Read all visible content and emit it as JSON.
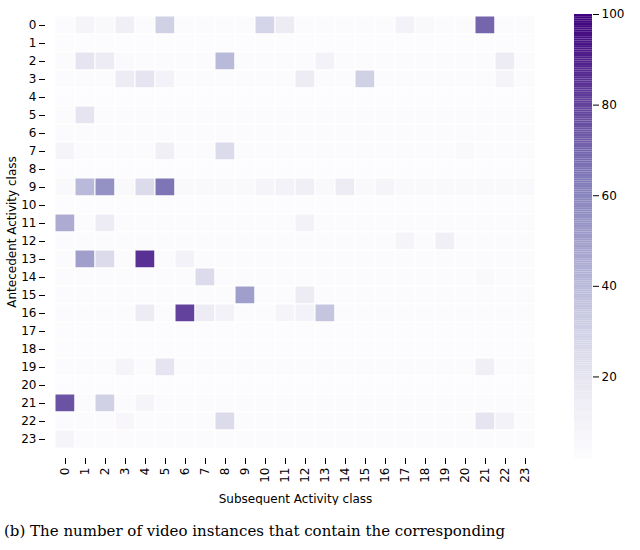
{
  "chart_data": {
    "type": "heatmap",
    "x_label": "Subsequent Activity class",
    "y_label": "Antecedent Activity class",
    "caption": "(b) The number of video instances that contain the corresponding",
    "x": [
      0,
      1,
      2,
      3,
      4,
      5,
      6,
      7,
      8,
      9,
      10,
      11,
      12,
      13,
      14,
      15,
      16,
      17,
      18,
      19,
      20,
      21,
      22,
      23
    ],
    "y": [
      0,
      1,
      2,
      3,
      4,
      5,
      6,
      7,
      8,
      9,
      10,
      11,
      12,
      13,
      14,
      15,
      16,
      17,
      18,
      19,
      20,
      21,
      22,
      23
    ],
    "cells": [
      [
        3,
        8,
        5,
        12,
        3,
        30,
        3,
        3,
        3,
        3,
        28,
        15,
        3,
        3,
        3,
        3,
        3,
        10,
        5,
        3,
        3,
        70,
        3,
        3
      ],
      [
        2,
        2,
        2,
        2,
        2,
        2,
        2,
        2,
        2,
        2,
        2,
        2,
        2,
        2,
        2,
        2,
        2,
        2,
        2,
        2,
        2,
        2,
        2,
        2
      ],
      [
        3,
        20,
        15,
        4,
        3,
        3,
        3,
        3,
        40,
        3,
        3,
        3,
        3,
        10,
        3,
        3,
        3,
        3,
        3,
        3,
        3,
        3,
        15,
        3
      ],
      [
        3,
        3,
        3,
        15,
        20,
        10,
        3,
        3,
        3,
        3,
        3,
        3,
        15,
        3,
        3,
        30,
        3,
        3,
        3,
        3,
        3,
        3,
        8,
        3
      ],
      [
        2,
        2,
        2,
        2,
        2,
        2,
        2,
        2,
        2,
        2,
        2,
        2,
        2,
        2,
        2,
        2,
        2,
        2,
        2,
        2,
        2,
        2,
        2,
        2
      ],
      [
        3,
        20,
        3,
        3,
        3,
        3,
        3,
        3,
        3,
        3,
        3,
        3,
        3,
        3,
        3,
        3,
        3,
        3,
        3,
        3,
        3,
        3,
        3,
        3
      ],
      [
        3,
        3,
        3,
        3,
        3,
        3,
        3,
        3,
        3,
        3,
        3,
        3,
        3,
        3,
        3,
        3,
        3,
        3,
        3,
        3,
        3,
        3,
        3,
        3
      ],
      [
        8,
        3,
        3,
        3,
        3,
        12,
        3,
        3,
        25,
        3,
        3,
        3,
        3,
        3,
        3,
        3,
        3,
        3,
        3,
        3,
        5,
        3,
        3,
        3
      ],
      [
        2,
        2,
        2,
        2,
        2,
        2,
        2,
        2,
        2,
        2,
        2,
        2,
        2,
        2,
        2,
        2,
        2,
        2,
        2,
        2,
        2,
        2,
        2,
        2
      ],
      [
        5,
        40,
        55,
        5,
        25,
        65,
        5,
        5,
        5,
        5,
        8,
        10,
        12,
        5,
        15,
        5,
        8,
        5,
        5,
        5,
        5,
        5,
        5,
        5
      ],
      [
        2,
        2,
        2,
        2,
        2,
        2,
        2,
        2,
        2,
        2,
        2,
        2,
        2,
        2,
        2,
        2,
        2,
        2,
        2,
        2,
        2,
        2,
        2,
        2
      ],
      [
        45,
        3,
        15,
        3,
        3,
        3,
        3,
        3,
        3,
        3,
        3,
        3,
        10,
        3,
        3,
        3,
        3,
        3,
        3,
        3,
        3,
        3,
        3,
        3
      ],
      [
        3,
        3,
        3,
        3,
        3,
        3,
        3,
        3,
        3,
        3,
        3,
        3,
        3,
        3,
        3,
        3,
        3,
        8,
        3,
        12,
        3,
        3,
        3,
        3
      ],
      [
        3,
        50,
        25,
        3,
        85,
        3,
        10,
        3,
        3,
        3,
        3,
        3,
        3,
        3,
        3,
        3,
        3,
        3,
        3,
        3,
        3,
        3,
        3,
        3
      ],
      [
        3,
        3,
        3,
        3,
        3,
        3,
        3,
        25,
        3,
        3,
        3,
        3,
        3,
        3,
        3,
        3,
        3,
        3,
        3,
        3,
        3,
        5,
        3,
        3
      ],
      [
        3,
        3,
        3,
        3,
        3,
        3,
        3,
        3,
        3,
        50,
        3,
        3,
        15,
        3,
        3,
        3,
        3,
        3,
        3,
        3,
        3,
        3,
        3,
        3
      ],
      [
        3,
        3,
        3,
        3,
        15,
        3,
        80,
        15,
        10,
        3,
        3,
        8,
        10,
        35,
        3,
        3,
        3,
        3,
        3,
        3,
        3,
        3,
        3,
        3
      ],
      [
        2,
        2,
        2,
        2,
        2,
        2,
        2,
        2,
        2,
        2,
        2,
        2,
        2,
        2,
        2,
        2,
        2,
        2,
        2,
        2,
        2,
        2,
        2,
        2
      ],
      [
        2,
        2,
        2,
        2,
        2,
        2,
        2,
        2,
        2,
        2,
        2,
        2,
        2,
        2,
        2,
        2,
        2,
        2,
        2,
        2,
        2,
        2,
        2,
        2
      ],
      [
        3,
        3,
        3,
        8,
        3,
        20,
        3,
        3,
        3,
        3,
        3,
        3,
        3,
        3,
        3,
        3,
        3,
        3,
        3,
        3,
        3,
        12,
        3,
        3
      ],
      [
        2,
        2,
        2,
        2,
        2,
        2,
        2,
        2,
        2,
        2,
        2,
        2,
        2,
        2,
        2,
        2,
        2,
        2,
        2,
        2,
        2,
        2,
        2,
        2
      ],
      [
        75,
        3,
        30,
        3,
        8,
        3,
        3,
        3,
        3,
        3,
        3,
        3,
        3,
        3,
        3,
        3,
        3,
        3,
        3,
        3,
        3,
        3,
        3,
        3
      ],
      [
        3,
        3,
        3,
        6,
        3,
        3,
        3,
        3,
        25,
        3,
        3,
        3,
        3,
        3,
        3,
        3,
        3,
        3,
        3,
        3,
        3,
        20,
        10,
        3
      ],
      [
        8,
        3,
        3,
        3,
        3,
        3,
        3,
        3,
        3,
        3,
        3,
        3,
        3,
        3,
        3,
        3,
        3,
        3,
        3,
        3,
        3,
        3,
        3,
        3
      ]
    ],
    "colorbar_range": [
      2,
      100
    ],
    "colorbar_ticks": [
      20,
      40,
      60,
      80,
      100
    ]
  }
}
